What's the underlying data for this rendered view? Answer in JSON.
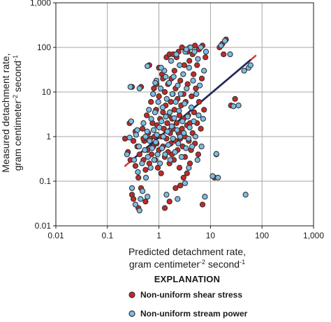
{
  "chart_data": {
    "type": "scatter",
    "title": "",
    "x_scale": "log",
    "y_scale": "log",
    "xlim": [
      0.01,
      1000
    ],
    "ylim": [
      0.01,
      1000
    ],
    "grid": true,
    "xlabel": {
      "line1": "Predicted detachment rate,",
      "line2_prefix": "gram centimeter",
      "line2_sup1": "-2",
      "line2_mid": " second",
      "line2_sup2": "-1"
    },
    "ylabel": {
      "line1": "Measured detachment rate,",
      "line2_prefix": "gram centimeter",
      "line2_sup1": "-2",
      "line2_mid": " second",
      "line2_sup2": "-1"
    },
    "xticks": [
      {
        "value": 0.01,
        "label": "0.01"
      },
      {
        "value": 0.1,
        "label": "0.1"
      },
      {
        "value": 1,
        "label": "1"
      },
      {
        "value": 10,
        "label": "10"
      },
      {
        "value": 100,
        "label": "100"
      },
      {
        "value": 1000,
        "label": "1,000"
      }
    ],
    "yticks": [
      {
        "value": 0.01,
        "label": "0.01"
      },
      {
        "value": 0.1,
        "label": "0.1"
      },
      {
        "value": 1,
        "label": "1"
      },
      {
        "value": 10,
        "label": "10"
      },
      {
        "value": 100,
        "label": "100"
      },
      {
        "value": 1000,
        "label": "1,000"
      }
    ],
    "legend": {
      "title": "EXPLANATION",
      "placement": "bottom"
    },
    "series": [
      {
        "name": "Non-uniform shear stress",
        "color": "#c62828",
        "points": [
          [
            0.22,
            0.9
          ],
          [
            0.25,
            0.45
          ],
          [
            0.28,
            0.3
          ],
          [
            0.3,
            0.05
          ],
          [
            0.32,
            0.8
          ],
          [
            0.35,
            0.22
          ],
          [
            0.38,
            0.6
          ],
          [
            0.4,
            0.12
          ],
          [
            0.42,
            0.4
          ],
          [
            0.45,
            0.07
          ],
          [
            0.48,
            1.5
          ],
          [
            0.5,
            0.3
          ],
          [
            0.52,
            0.8
          ],
          [
            0.55,
            0.18
          ],
          [
            0.58,
            3.0
          ],
          [
            0.6,
            0.5
          ],
          [
            0.62,
            1.2
          ],
          [
            0.65,
            0.25
          ],
          [
            0.68,
            0.9
          ],
          [
            0.7,
            6.0
          ],
          [
            0.72,
            0.4
          ],
          [
            0.75,
            2.0
          ],
          [
            0.78,
            0.6
          ],
          [
            0.8,
            12
          ],
          [
            0.82,
            1.0
          ],
          [
            0.85,
            0.3
          ],
          [
            0.88,
            4.0
          ],
          [
            0.9,
            0.7
          ],
          [
            0.92,
            1.8
          ],
          [
            0.95,
            0.2
          ],
          [
            1.0,
            8.0
          ],
          [
            1.0,
            0.5
          ],
          [
            1.05,
            2.5
          ],
          [
            1.1,
            1.0
          ],
          [
            1.1,
            0.15
          ],
          [
            1.15,
            25
          ],
          [
            1.2,
            3.5
          ],
          [
            1.2,
            0.6
          ],
          [
            1.25,
            1.5
          ],
          [
            1.3,
            10
          ],
          [
            1.3,
            0.35
          ],
          [
            1.35,
            5.0
          ],
          [
            1.4,
            0.9
          ],
          [
            1.4,
            60
          ],
          [
            1.45,
            2.0
          ],
          [
            1.5,
            0.45
          ],
          [
            1.5,
            15
          ],
          [
            1.55,
            3.0
          ],
          [
            1.6,
            0.25
          ],
          [
            1.6,
            70
          ],
          [
            1.65,
            1.2
          ],
          [
            1.7,
            6.0
          ],
          [
            1.7,
            0.7
          ],
          [
            1.75,
            20
          ],
          [
            1.8,
            2.5
          ],
          [
            1.8,
            0.4
          ],
          [
            1.85,
            9.0
          ],
          [
            1.9,
            1.5
          ],
          [
            1.9,
            70
          ],
          [
            1.95,
            0.3
          ],
          [
            2.0,
            4.0
          ],
          [
            2.0,
            30
          ],
          [
            2.1,
            0.8
          ],
          [
            2.1,
            12
          ],
          [
            2.2,
            2.0
          ],
          [
            2.2,
            60
          ],
          [
            2.3,
            0.5
          ],
          [
            2.3,
            7.0
          ],
          [
            2.4,
            1.2
          ],
          [
            2.4,
            80
          ],
          [
            2.5,
            3.0
          ],
          [
            2.5,
            0.2
          ],
          [
            2.6,
            18
          ],
          [
            2.6,
            0.9
          ],
          [
            2.7,
            5.0
          ],
          [
            2.8,
            1.5
          ],
          [
            2.8,
            100
          ],
          [
            2.9,
            0.6
          ],
          [
            3.0,
            9.0
          ],
          [
            3.0,
            2.5
          ],
          [
            3.1,
            40
          ],
          [
            3.2,
            1.0
          ],
          [
            3.2,
            0.35
          ],
          [
            3.3,
            6.0
          ],
          [
            3.4,
            90
          ],
          [
            3.5,
            1.8
          ],
          [
            3.5,
            0.15
          ],
          [
            3.6,
            15
          ],
          [
            3.7,
            3.0
          ],
          [
            3.8,
            0.8
          ],
          [
            3.9,
            50
          ],
          [
            4.0,
            2.0
          ],
          [
            4.0,
            100
          ],
          [
            4.2,
            0.5
          ],
          [
            4.3,
            8.0
          ],
          [
            4.5,
            1.2
          ],
          [
            4.5,
            70
          ],
          [
            4.7,
            25
          ],
          [
            4.8,
            3.5
          ],
          [
            5.0,
            0.7
          ],
          [
            5.0,
            110
          ],
          [
            5.2,
            12
          ],
          [
            5.5,
            2.0
          ],
          [
            5.5,
            40
          ],
          [
            5.8,
            0.4
          ],
          [
            6.0,
            6.0
          ],
          [
            6.0,
            90
          ],
          [
            6.5,
            1.5
          ],
          [
            6.8,
            20
          ],
          [
            7.0,
            0.03
          ],
          [
            7.0,
            110
          ],
          [
            7.5,
            4.0
          ],
          [
            8.0,
            60
          ],
          [
            0.32,
            0.04
          ],
          [
            0.4,
            0.025
          ],
          [
            0.55,
            0.035
          ],
          [
            1.3,
            0.025
          ],
          [
            1.6,
            0.035
          ],
          [
            2.1,
            0.07
          ],
          [
            2.6,
            0.08
          ],
          [
            3.0,
            0.12
          ],
          [
            4.0,
            0.25
          ],
          [
            12,
            0.12
          ],
          [
            13,
            0.4
          ],
          [
            15,
            100
          ],
          [
            17,
            120
          ],
          [
            20,
            150
          ],
          [
            25,
            5.0
          ],
          [
            18,
            70
          ],
          [
            30,
            7.0
          ],
          [
            0.3,
            13
          ],
          [
            0.45,
            13
          ],
          [
            0.65,
            40
          ],
          [
            0.9,
            15
          ],
          [
            1.0,
            35
          ],
          [
            1.2,
            20
          ],
          [
            3.6,
            80
          ],
          [
            0.27,
            2.0
          ],
          [
            0.35,
            1.3
          ],
          [
            0.5,
            0.9
          ]
        ]
      },
      {
        "name": "Non-uniform stream power",
        "color": "#7bbde6",
        "points": [
          [
            0.24,
            0.4
          ],
          [
            0.27,
            0.95
          ],
          [
            0.3,
            0.07
          ],
          [
            0.33,
            0.3
          ],
          [
            0.36,
            1.1
          ],
          [
            0.39,
            0.16
          ],
          [
            0.41,
            0.6
          ],
          [
            0.44,
            0.04
          ],
          [
            0.47,
            0.25
          ],
          [
            0.5,
            2.0
          ],
          [
            0.53,
            0.5
          ],
          [
            0.56,
            0.12
          ],
          [
            0.59,
            1.3
          ],
          [
            0.61,
            0.35
          ],
          [
            0.64,
            4.0
          ],
          [
            0.66,
            0.8
          ],
          [
            0.69,
            0.2
          ],
          [
            0.71,
            2.5
          ],
          [
            0.74,
            0.55
          ],
          [
            0.77,
            9.0
          ],
          [
            0.79,
            1.4
          ],
          [
            0.81,
            0.3
          ],
          [
            0.84,
            3.5
          ],
          [
            0.87,
            0.75
          ],
          [
            0.89,
            18
          ],
          [
            0.91,
            1.1
          ],
          [
            0.94,
            0.4
          ],
          [
            0.97,
            6.0
          ],
          [
            1.02,
            1.6
          ],
          [
            1.05,
            0.25
          ],
          [
            1.08,
            12
          ],
          [
            1.12,
            2.2
          ],
          [
            1.15,
            0.55
          ],
          [
            1.18,
            4.5
          ],
          [
            1.22,
            1.0
          ],
          [
            1.27,
            30
          ],
          [
            1.32,
            0.4
          ],
          [
            1.36,
            2.8
          ],
          [
            1.42,
            7.0
          ],
          [
            1.47,
            1.3
          ],
          [
            1.52,
            0.65
          ],
          [
            1.57,
            16
          ],
          [
            1.62,
            3.5
          ],
          [
            1.66,
            0.3
          ],
          [
            1.72,
            50
          ],
          [
            1.77,
            1.7
          ],
          [
            1.82,
            9.0
          ],
          [
            1.87,
            0.9
          ],
          [
            1.93,
            22
          ],
          [
            1.98,
            2.6
          ],
          [
            2.05,
            0.45
          ],
          [
            2.12,
            6.0
          ],
          [
            2.18,
            70
          ],
          [
            2.25,
            1.4
          ],
          [
            2.32,
            14
          ],
          [
            2.38,
            0.7
          ],
          [
            2.45,
            3.8
          ],
          [
            2.52,
            40
          ],
          [
            2.58,
            1.0
          ],
          [
            2.65,
            9.0
          ],
          [
            2.75,
            0.35
          ],
          [
            2.85,
            2.2
          ],
          [
            2.95,
            25
          ],
          [
            3.05,
            1.2
          ],
          [
            3.15,
            5.5
          ],
          [
            3.25,
            80
          ],
          [
            3.35,
            0.55
          ],
          [
            3.45,
            12
          ],
          [
            3.6,
            2.8
          ],
          [
            3.75,
            0.9
          ],
          [
            3.85,
            35
          ],
          [
            3.95,
            1.6
          ],
          [
            4.1,
            100
          ],
          [
            4.25,
            4.5
          ],
          [
            4.4,
            0.6
          ],
          [
            4.6,
            18
          ],
          [
            4.75,
            2.2
          ],
          [
            4.9,
            80
          ],
          [
            5.1,
            1.0
          ],
          [
            5.3,
            9.0
          ],
          [
            5.6,
            0.3
          ],
          [
            5.7,
            55
          ],
          [
            5.9,
            3.0
          ],
          [
            6.2,
            14
          ],
          [
            6.5,
            100
          ],
          [
            6.7,
            0.6
          ],
          [
            7.2,
            2.5
          ],
          [
            7.5,
            30
          ],
          [
            7.8,
            0.045
          ],
          [
            8.2,
            80
          ],
          [
            0.35,
            0.03
          ],
          [
            0.42,
            0.022
          ],
          [
            0.48,
            0.06
          ],
          [
            0.6,
            0.045
          ],
          [
            1.4,
            0.05
          ],
          [
            2.3,
            0.04
          ],
          [
            3.2,
            0.09
          ],
          [
            3.8,
            0.2
          ],
          [
            11,
            0.13
          ],
          [
            13,
            0.41
          ],
          [
            14,
            0.12
          ],
          [
            16,
            110
          ],
          [
            19,
            140
          ],
          [
            24,
            70
          ],
          [
            28,
            4.8
          ],
          [
            35,
            5.0
          ],
          [
            45,
            30
          ],
          [
            55,
            35
          ],
          [
            48,
            0.05
          ],
          [
            60,
            40
          ],
          [
            0.28,
            13
          ],
          [
            0.42,
            12
          ],
          [
            0.6,
            38
          ],
          [
            0.85,
            16
          ],
          [
            1.1,
            35
          ],
          [
            1.35,
            22
          ],
          [
            3.4,
            90
          ],
          [
            0.29,
            2.2
          ],
          [
            0.38,
            1.4
          ],
          [
            0.55,
            1.0
          ]
        ]
      }
    ],
    "trend_line": {
      "color": "#1a2b5e",
      "outer_color": "#e53935",
      "x": [
        0.22,
        75
      ],
      "y": [
        0.22,
        65
      ]
    }
  }
}
